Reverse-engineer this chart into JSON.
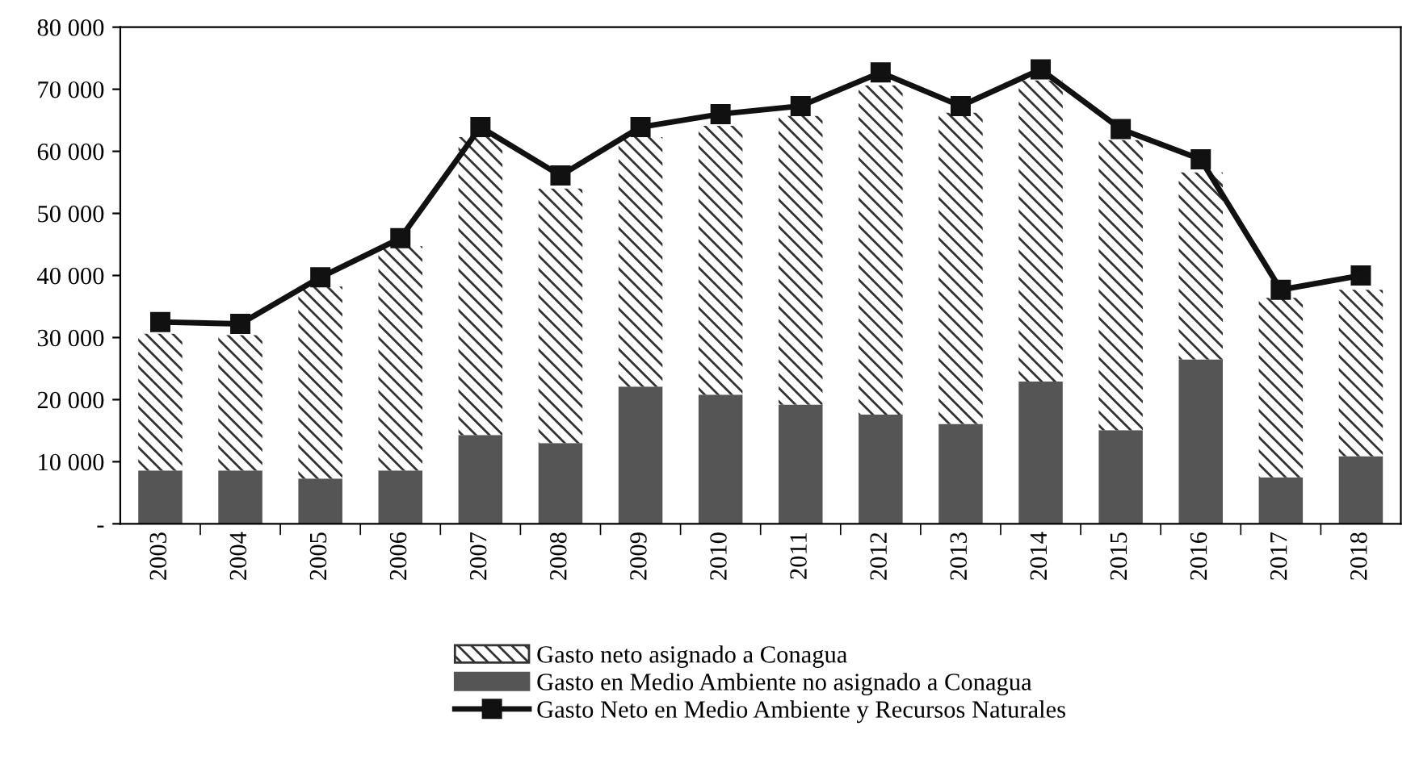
{
  "chart_data": {
    "type": "bar",
    "stacked": true,
    "categories": [
      "2003",
      "2004",
      "2005",
      "2006",
      "2007",
      "2008",
      "2009",
      "2010",
      "2011",
      "2012",
      "2013",
      "2014",
      "2015",
      "2016",
      "2017",
      "2018"
    ],
    "series": [
      {
        "name": "Gasto en Medio Ambiente no asignado a Conagua",
        "color": "#555555",
        "values": [
          8600,
          8600,
          7300,
          8600,
          14300,
          13000,
          22100,
          20800,
          19200,
          17600,
          16100,
          22900,
          15100,
          26500,
          7500,
          10900
        ]
      },
      {
        "name": "Gasto neto asignado a Conagua",
        "color": "#333333",
        "values": [
          22000,
          21800,
          30900,
          36100,
          48000,
          41000,
          40200,
          43300,
          46500,
          53000,
          50100,
          48500,
          46700,
          30100,
          28900,
          26800
        ]
      },
      {
        "name": "Gasto Neto en Medio Ambiente y Recursos Naturales",
        "type": "line",
        "color": "#111111",
        "marker": "square",
        "values": [
          32500,
          32200,
          39700,
          46000,
          63900,
          56100,
          63900,
          66000,
          67300,
          72700,
          67300,
          73200,
          63600,
          58700,
          37700,
          40000
        ]
      }
    ],
    "ylim": [
      0,
      80000
    ],
    "yticks": [
      {
        "value": 0,
        "label": "-"
      },
      {
        "value": 10000,
        "label": "10 000"
      },
      {
        "value": 20000,
        "label": "20 000"
      },
      {
        "value": 30000,
        "label": "30 000"
      },
      {
        "value": 40000,
        "label": "40 000"
      },
      {
        "value": 50000,
        "label": "50 000"
      },
      {
        "value": 60000,
        "label": "60 000"
      },
      {
        "value": 70000,
        "label": "70 000"
      },
      {
        "value": 80000,
        "label": "80 000"
      }
    ],
    "legend": "bottom",
    "grid": false
  }
}
